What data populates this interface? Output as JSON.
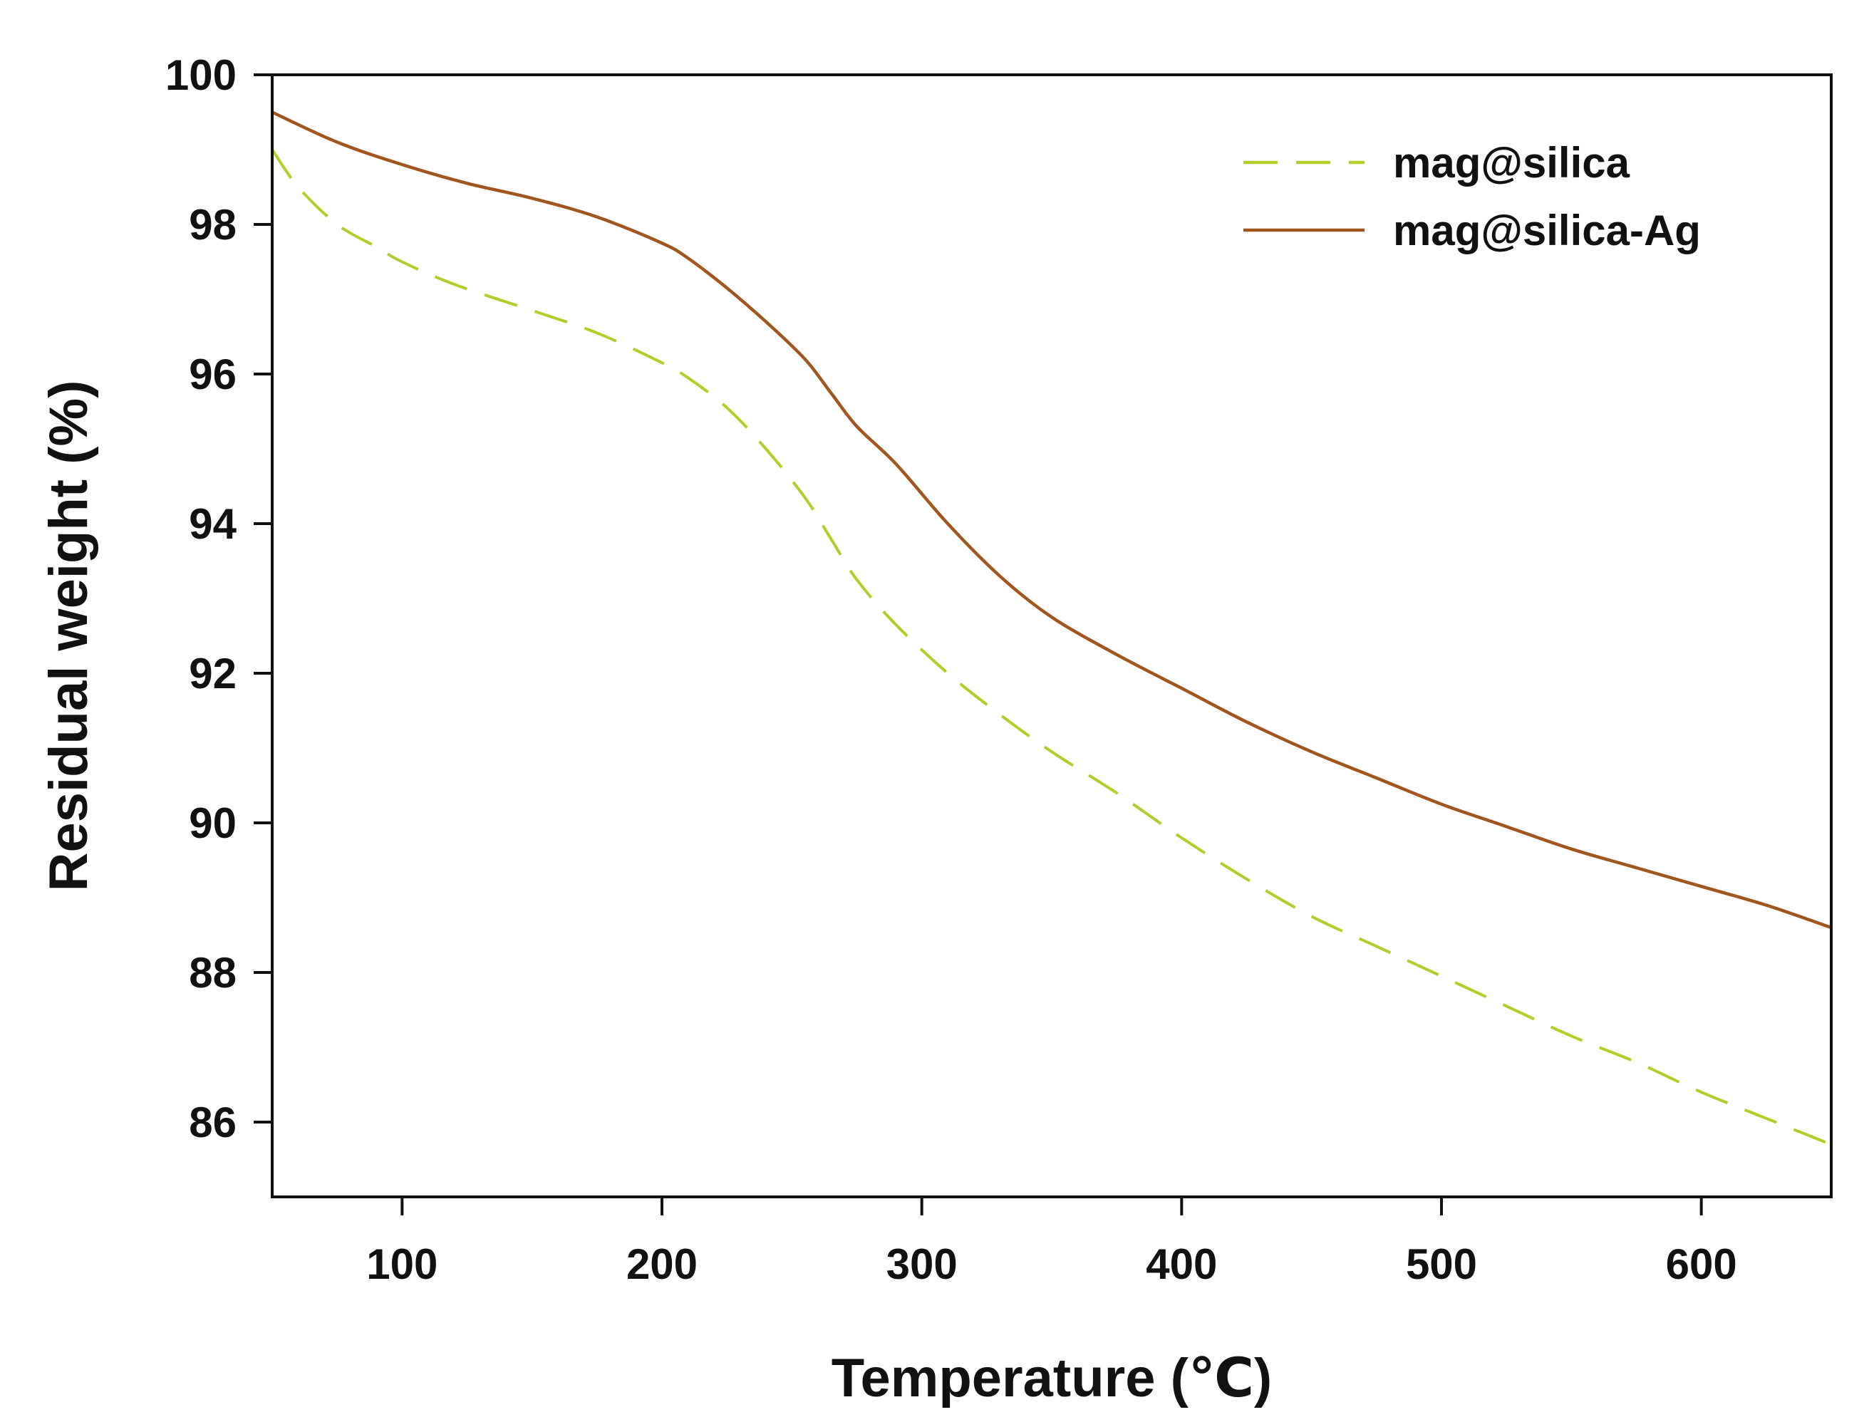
{
  "chart_data": {
    "type": "line",
    "xlabel": "Temperature (℃)",
    "ylabel": "Residual weight (%)",
    "xlim": [
      50,
      650
    ],
    "ylim": [
      85,
      100
    ],
    "xticks": [
      100,
      200,
      300,
      400,
      500,
      600
    ],
    "yticks": [
      86,
      88,
      90,
      92,
      94,
      96,
      98,
      100
    ],
    "grid": false,
    "legend_position": "top-right",
    "series": [
      {
        "name": "mag@silica",
        "color": "#b5cc2a",
        "style": "dashed",
        "x": [
          50,
          60,
          75,
          90,
          100,
          120,
          150,
          175,
          200,
          210,
          225,
          240,
          255,
          265,
          275,
          290,
          310,
          330,
          350,
          375,
          400,
          425,
          450,
          475,
          500,
          525,
          550,
          575,
          600,
          625,
          650
        ],
        "y": [
          99.0,
          98.5,
          98.0,
          97.7,
          97.5,
          97.2,
          96.85,
          96.55,
          96.15,
          95.95,
          95.55,
          95.0,
          94.35,
          93.8,
          93.25,
          92.65,
          92.0,
          91.45,
          90.95,
          90.4,
          89.8,
          89.25,
          88.75,
          88.35,
          87.95,
          87.55,
          87.15,
          86.8,
          86.4,
          86.05,
          85.7
        ]
      },
      {
        "name": "mag@silica-Ag",
        "color": "#a0561e",
        "style": "solid",
        "x": [
          50,
          75,
          100,
          125,
          150,
          175,
          200,
          210,
          225,
          240,
          255,
          265,
          275,
          290,
          310,
          330,
          350,
          375,
          400,
          425,
          450,
          475,
          500,
          525,
          550,
          575,
          600,
          625,
          650
        ],
        "y": [
          99.5,
          99.1,
          98.8,
          98.55,
          98.35,
          98.1,
          97.75,
          97.55,
          97.15,
          96.7,
          96.2,
          95.75,
          95.3,
          94.8,
          94.0,
          93.3,
          92.75,
          92.25,
          91.8,
          91.35,
          90.95,
          90.6,
          90.25,
          89.95,
          89.65,
          89.4,
          89.15,
          88.9,
          88.6
        ]
      }
    ]
  }
}
